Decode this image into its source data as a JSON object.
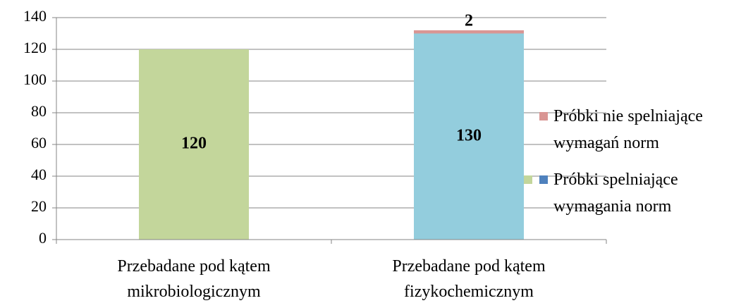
{
  "chart_data": {
    "type": "bar",
    "stacked": true,
    "categories": [
      "Przebadane pod kątem mikrobiologicznym",
      "Przebadane pod kątem fizykochemicznym"
    ],
    "series": [
      {
        "name": "Próbki spelniające wymagania norm",
        "color": "#4f81bd",
        "colors": [
          "#c3d69b",
          "#93cddd"
        ],
        "values": [
          120,
          130
        ]
      },
      {
        "name": "Próbki nie spelniające wymagań norm",
        "color": "#d99694",
        "values": [
          null,
          2
        ]
      }
    ],
    "ylim": [
      0,
      140
    ],
    "yticks": [
      0,
      20,
      40,
      60,
      80,
      100,
      120,
      140
    ],
    "grid": true,
    "legend": "right"
  }
}
